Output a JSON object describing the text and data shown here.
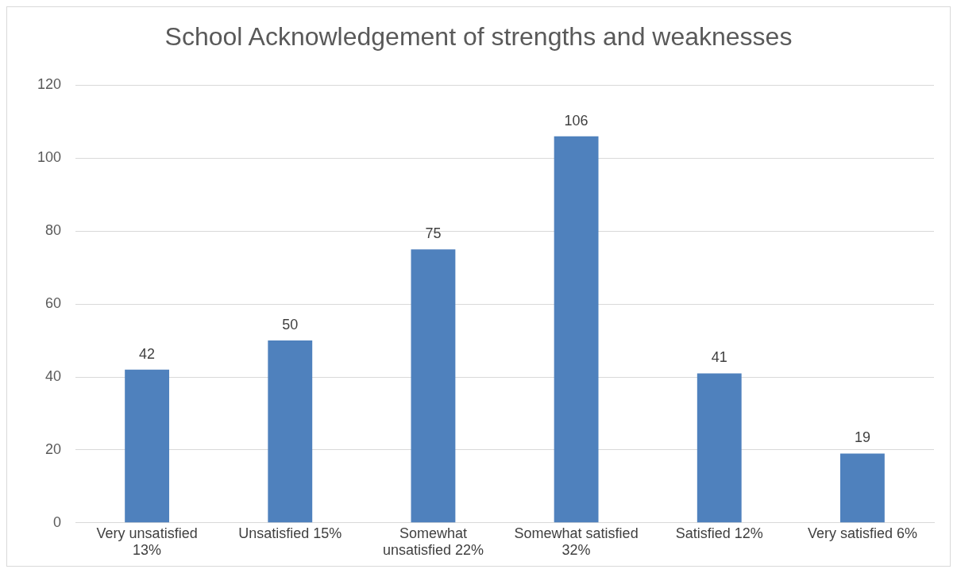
{
  "chart_data": {
    "type": "bar",
    "title": "School Acknowledgement of strengths and weaknesses",
    "categories": [
      "Very unsatisfied 13%",
      "Unsatisfied 15%",
      "Somewhat unsatisfied 22%",
      "Somewhat satisfied 32%",
      "Satisfied 12%",
      "Very satisfied 6%"
    ],
    "values": [
      42,
      50,
      75,
      106,
      41,
      19
    ],
    "color": "#4f81bd",
    "ylim": [
      0,
      120
    ],
    "yticks": [
      0,
      20,
      40,
      60,
      80,
      100,
      120
    ],
    "grid": "y",
    "legend": false,
    "data_labels": true
  }
}
